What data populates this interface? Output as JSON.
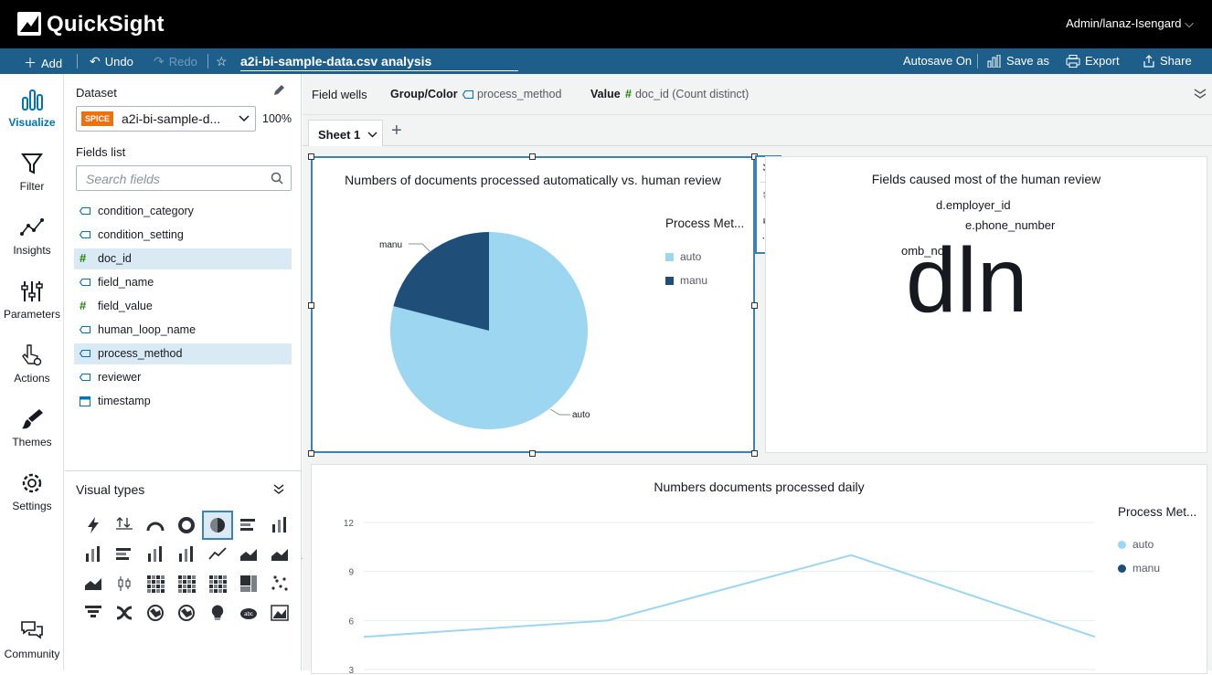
{
  "app": {
    "brand": "QuickSight",
    "user": "Admin/lanaz-Isengard ⌵"
  },
  "toolbar": {
    "add": "Add",
    "undo": "Undo",
    "redo": "Redo",
    "analysis_title": "a2i-bi-sample-data.csv analysis",
    "autosave": "Autosave On",
    "save_as": "Save as",
    "export": "Export",
    "share": "Share"
  },
  "nav": [
    {
      "label": "Visualize"
    },
    {
      "label": "Filter"
    },
    {
      "label": "Insights"
    },
    {
      "label": "Parameters"
    },
    {
      "label": "Actions"
    },
    {
      "label": "Themes"
    },
    {
      "label": "Settings"
    },
    {
      "label": "Community"
    }
  ],
  "data_panel": {
    "dataset_label": "Dataset",
    "spice": "SPICE",
    "dataset_name": "a2i-bi-sample-d...",
    "dataset_pct": "100%",
    "fields_label": "Fields list",
    "search_placeholder": "Search fields",
    "fields": [
      {
        "name": "condition_category",
        "type": "dimension",
        "selected": false
      },
      {
        "name": "condition_setting",
        "type": "dimension",
        "selected": false
      },
      {
        "name": "doc_id",
        "type": "measure",
        "selected": true
      },
      {
        "name": "field_name",
        "type": "dimension",
        "selected": false
      },
      {
        "name": "field_value",
        "type": "measure",
        "selected": false
      },
      {
        "name": "human_loop_name",
        "type": "dimension",
        "selected": false
      },
      {
        "name": "process_method",
        "type": "dimension",
        "selected": true
      },
      {
        "name": "reviewer",
        "type": "dimension",
        "selected": false
      },
      {
        "name": "timestamp",
        "type": "date",
        "selected": false
      }
    ],
    "visual_types_label": "Visual types"
  },
  "wells": {
    "label": "Field wells",
    "group_label": "Group/Color",
    "group_value": "process_method",
    "value_label": "Value",
    "value_value": "doc_id (Count distinct)"
  },
  "sheet": {
    "tab": "Sheet 1",
    "add": "+"
  },
  "pie_visual": {
    "title": "Numbers of documents processed automatically vs. human review",
    "legend_title": "Process Met...",
    "legend": [
      {
        "name": "auto",
        "color": "#9dd6f0"
      },
      {
        "name": "manu",
        "color": "#1f4e79"
      }
    ],
    "slice_labels": {
      "auto": "auto",
      "manu": "manu"
    }
  },
  "cloud_visual": {
    "title": "Fields caused most of the human review",
    "words": [
      "d.employer_id",
      "e.phone_number",
      "omb_no",
      "dln"
    ]
  },
  "line_visual": {
    "title": "Numbers documents processed daily",
    "legend_title": "Process Met...",
    "legend": [
      {
        "name": "auto",
        "color": "#9dd6f0"
      },
      {
        "name": "manu",
        "color": "#1f4e79"
      }
    ],
    "yticks": [
      "12",
      "9",
      "6",
      "3"
    ]
  },
  "chart_data": [
    {
      "type": "pie",
      "title": "Numbers of documents processed automatically vs. human review",
      "legend_title": "Process Met...",
      "slices": [
        {
          "label": "auto",
          "value": 0.79
        },
        {
          "label": "manu",
          "value": 0.21
        }
      ]
    },
    {
      "type": "line",
      "title": "Numbers documents processed daily",
      "ylim": [
        3,
        12
      ],
      "series": [
        {
          "name": "auto",
          "values": [
            5,
            6,
            10,
            5
          ]
        }
      ]
    }
  ]
}
